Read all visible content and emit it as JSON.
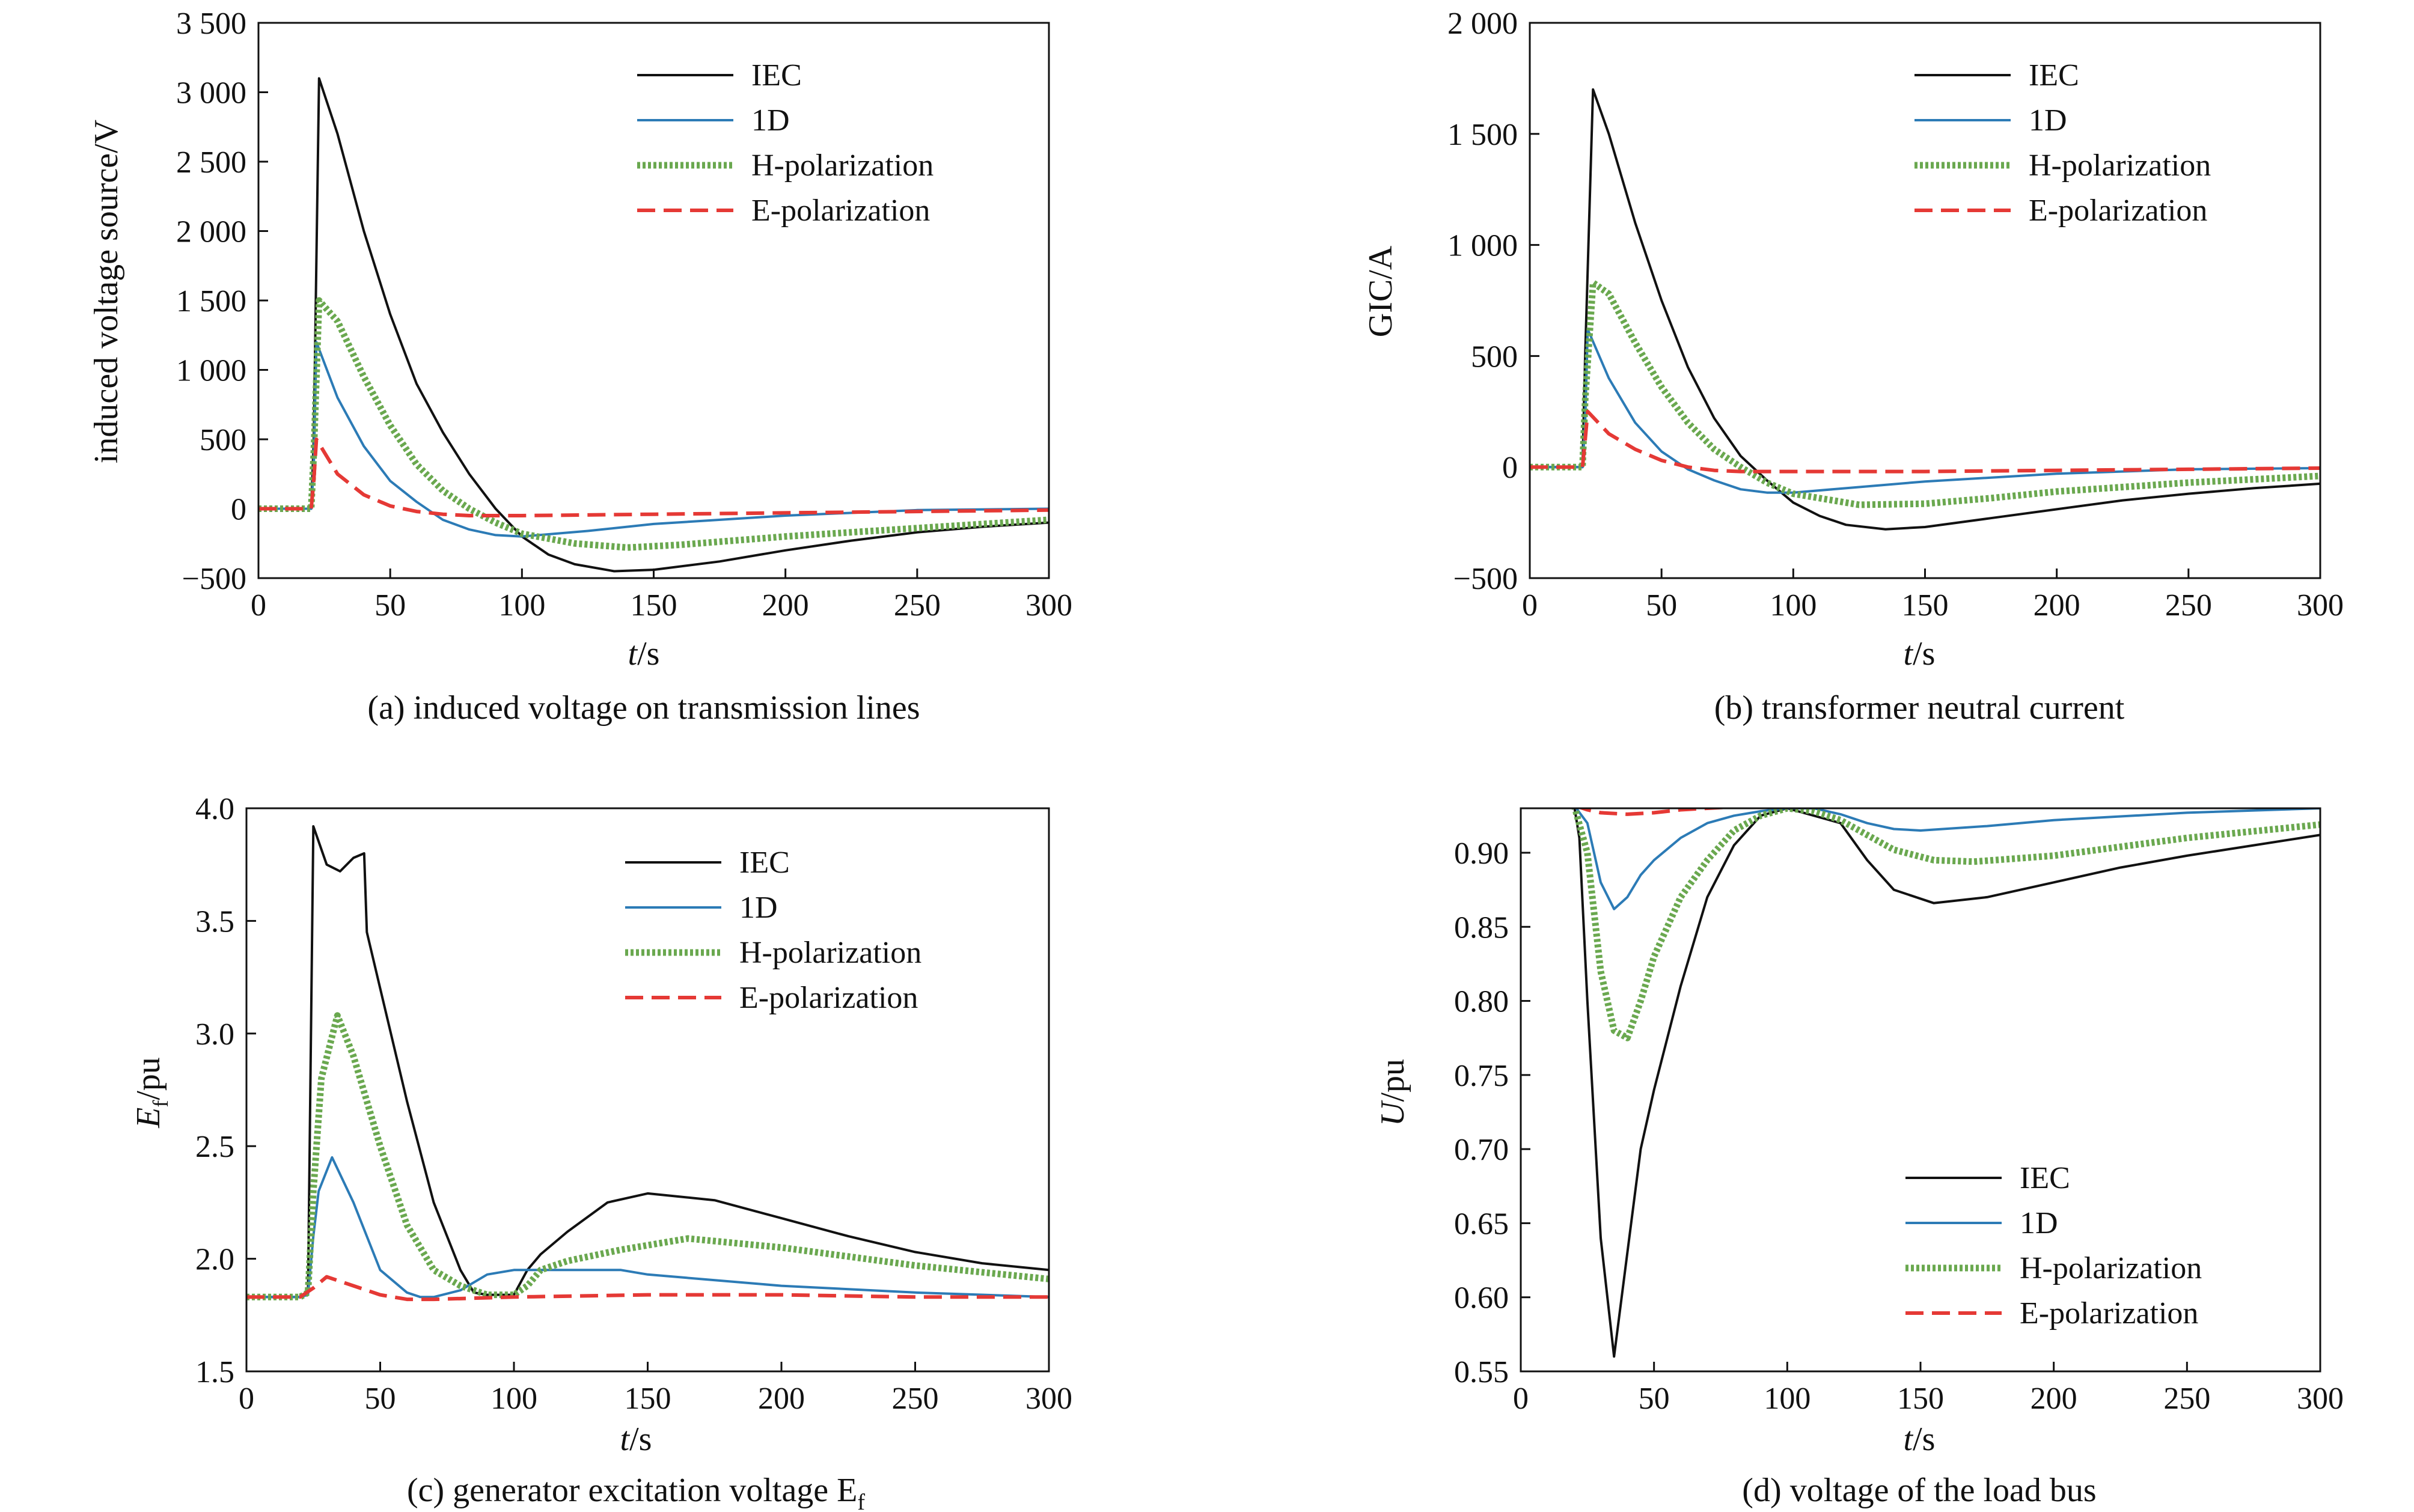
{
  "colors": {
    "IEC": "#111111",
    "1D": "#2c7bb6",
    "H-polarization": "#6aa84f",
    "E-polarization": "#e53935"
  },
  "panels": [
    {
      "id": "a",
      "caption": "(a) induced voltage on transmission lines",
      "xlabel": "t/s",
      "ylabel": "induced voltage source/V",
      "xticks": [
        "0",
        "50",
        "100",
        "150",
        "200",
        "250",
        "300"
      ],
      "yticks": [
        "−500",
        "0",
        "500",
        "1 000",
        "1 500",
        "2 000",
        "2 500",
        "3 000",
        "3 500"
      ],
      "legend": [
        "IEC",
        "1D",
        "H-polarization",
        "E-polarization"
      ],
      "legend_position": "top-right"
    },
    {
      "id": "b",
      "caption": "(b) transformer neutral current",
      "xlabel": "t/s",
      "ylabel": "GIC/A",
      "xticks": [
        "0",
        "50",
        "100",
        "150",
        "200",
        "250",
        "300"
      ],
      "yticks": [
        "−500",
        "0",
        "500",
        "1 000",
        "1 500",
        "2 000"
      ],
      "legend": [
        "IEC",
        "1D",
        "H-polarization",
        "E-polarization"
      ],
      "legend_position": "top-right"
    },
    {
      "id": "c",
      "caption": "(c) generator excitation voltage E",
      "caption_sub": "f",
      "xlabel": "t/s",
      "ylabel": "E",
      "ylabel_sub": "f",
      "ylabel_rest": "/pu",
      "xticks": [
        "0",
        "50",
        "100",
        "150",
        "200",
        "250",
        "300"
      ],
      "yticks": [
        "1.5",
        "2.0",
        "2.5",
        "3.0",
        "3.5",
        "4.0"
      ],
      "legend": [
        "IEC",
        "1D",
        "H-polarization",
        "E-polarization"
      ],
      "legend_position": "top-right"
    },
    {
      "id": "d",
      "caption": "(d) voltage of the load bus",
      "xlabel": "t/s",
      "ylabel": "U/pu",
      "xticks": [
        "0",
        "50",
        "100",
        "150",
        "200",
        "250",
        "300"
      ],
      "yticks": [
        "0.55",
        "0.60",
        "0.65",
        "0.70",
        "0.75",
        "0.80",
        "0.85",
        "0.90"
      ],
      "legend": [
        "IEC",
        "1D",
        "H-polarization",
        "E-polarization"
      ],
      "legend_position": "bottom-right"
    }
  ],
  "chart_data": [
    {
      "type": "line",
      "title": "(a) induced voltage on transmission lines",
      "xlabel": "t/s",
      "ylabel": "induced voltage source/V",
      "xlim": [
        0,
        300
      ],
      "ylim": [
        -500,
        3500
      ],
      "legend": "top-right",
      "series": [
        {
          "name": "IEC",
          "x": [
            0,
            20,
            21,
            23,
            30,
            40,
            50,
            60,
            70,
            80,
            90,
            100,
            110,
            120,
            135,
            150,
            175,
            200,
            225,
            250,
            275,
            300
          ],
          "y": [
            0,
            0,
            500,
            3100,
            2700,
            2000,
            1400,
            900,
            550,
            250,
            0,
            -200,
            -330,
            -400,
            -450,
            -440,
            -380,
            -300,
            -230,
            -170,
            -130,
            -100
          ]
        },
        {
          "name": "1D",
          "x": [
            0,
            20,
            21,
            22,
            30,
            40,
            50,
            60,
            70,
            80,
            90,
            100,
            125,
            150,
            200,
            250,
            300
          ],
          "y": [
            0,
            0,
            300,
            1200,
            800,
            450,
            200,
            50,
            -80,
            -150,
            -190,
            -200,
            -160,
            -110,
            -50,
            -10,
            0
          ]
        },
        {
          "name": "H-polarization",
          "x": [
            0,
            20,
            21,
            23,
            30,
            40,
            50,
            60,
            70,
            80,
            90,
            100,
            120,
            140,
            160,
            200,
            250,
            300
          ],
          "y": [
            0,
            0,
            400,
            1500,
            1350,
            950,
            600,
            320,
            130,
            0,
            -100,
            -180,
            -250,
            -280,
            -260,
            -200,
            -140,
            -80
          ]
        },
        {
          "name": "E-polarization",
          "x": [
            0,
            20,
            21,
            22,
            30,
            40,
            50,
            60,
            70,
            80,
            100,
            150,
            200,
            250,
            300
          ],
          "y": [
            0,
            0,
            200,
            500,
            250,
            100,
            20,
            -20,
            -40,
            -50,
            -50,
            -40,
            -30,
            -20,
            -10
          ]
        }
      ]
    },
    {
      "type": "line",
      "title": "(b) transformer neutral current",
      "xlabel": "t/s",
      "ylabel": "GIC/A",
      "xlim": [
        0,
        300
      ],
      "ylim": [
        -500,
        2000
      ],
      "legend": "top-right",
      "series": [
        {
          "name": "IEC",
          "x": [
            0,
            20,
            21,
            24,
            30,
            40,
            50,
            60,
            70,
            80,
            90,
            100,
            110,
            120,
            135,
            150,
            175,
            200,
            225,
            250,
            275,
            300
          ],
          "y": [
            0,
            0,
            500,
            1700,
            1500,
            1100,
            750,
            450,
            220,
            50,
            -60,
            -160,
            -220,
            -260,
            -280,
            -270,
            -230,
            -190,
            -150,
            -120,
            -95,
            -75
          ]
        },
        {
          "name": "1D",
          "x": [
            0,
            20,
            21,
            22,
            30,
            40,
            50,
            60,
            70,
            80,
            90,
            100,
            125,
            150,
            200,
            250,
            300
          ],
          "y": [
            0,
            0,
            200,
            620,
            400,
            200,
            70,
            -10,
            -60,
            -100,
            -115,
            -115,
            -90,
            -65,
            -30,
            -10,
            -5
          ]
        },
        {
          "name": "H-polarization",
          "x": [
            0,
            20,
            21,
            24,
            30,
            40,
            50,
            60,
            70,
            80,
            90,
            100,
            125,
            150,
            175,
            200,
            250,
            300
          ],
          "y": [
            0,
            0,
            300,
            830,
            780,
            560,
            360,
            200,
            80,
            0,
            -70,
            -120,
            -170,
            -165,
            -140,
            -110,
            -70,
            -40
          ]
        },
        {
          "name": "E-polarization",
          "x": [
            0,
            20,
            21,
            22,
            30,
            40,
            50,
            60,
            70,
            80,
            100,
            150,
            200,
            250,
            300
          ],
          "y": [
            0,
            0,
            120,
            250,
            150,
            80,
            30,
            0,
            -15,
            -20,
            -20,
            -20,
            -15,
            -10,
            -5
          ]
        }
      ]
    },
    {
      "type": "line",
      "title": "(c) generator excitation voltage Ef",
      "xlabel": "t/s",
      "ylabel": "Ef/pu",
      "xlim": [
        0,
        300
      ],
      "ylim": [
        1.5,
        4.0
      ],
      "legend": "top-right",
      "series": [
        {
          "name": "IEC",
          "x": [
            0,
            20,
            23,
            25,
            30,
            35,
            40,
            44,
            45,
            50,
            60,
            70,
            80,
            85,
            90,
            100,
            105,
            110,
            120,
            135,
            150,
            175,
            200,
            225,
            250,
            275,
            300
          ],
          "y": [
            1.83,
            1.83,
            1.85,
            3.92,
            3.75,
            3.72,
            3.78,
            3.8,
            3.45,
            3.2,
            2.7,
            2.25,
            1.95,
            1.85,
            1.84,
            1.84,
            1.95,
            2.02,
            2.12,
            2.25,
            2.29,
            2.26,
            2.18,
            2.1,
            2.03,
            1.98,
            1.95
          ]
        },
        {
          "name": "1D",
          "x": [
            0,
            20,
            23,
            25,
            27,
            32,
            40,
            50,
            60,
            65,
            70,
            80,
            90,
            100,
            120,
            140,
            150,
            200,
            250,
            300
          ],
          "y": [
            1.83,
            1.83,
            1.84,
            2.1,
            2.3,
            2.45,
            2.25,
            1.95,
            1.85,
            1.83,
            1.83,
            1.86,
            1.93,
            1.95,
            1.95,
            1.95,
            1.93,
            1.88,
            1.85,
            1.83
          ]
        },
        {
          "name": "H-polarization",
          "x": [
            0,
            20,
            23,
            25,
            28,
            34,
            40,
            50,
            60,
            70,
            80,
            85,
            90,
            100,
            105,
            110,
            120,
            140,
            165,
            200,
            250,
            300
          ],
          "y": [
            1.83,
            1.83,
            1.85,
            2.3,
            2.8,
            3.08,
            2.9,
            2.5,
            2.15,
            1.95,
            1.88,
            1.86,
            1.84,
            1.84,
            1.88,
            1.95,
            1.99,
            2.04,
            2.09,
            2.05,
            1.97,
            1.91
          ]
        },
        {
          "name": "E-polarization",
          "x": [
            0,
            20,
            25,
            30,
            40,
            50,
            60,
            70,
            100,
            150,
            200,
            250,
            300
          ],
          "y": [
            1.83,
            1.83,
            1.87,
            1.92,
            1.88,
            1.84,
            1.82,
            1.82,
            1.83,
            1.84,
            1.84,
            1.83,
            1.83
          ]
        }
      ]
    },
    {
      "type": "line",
      "title": "(d) voltage of the load bus",
      "xlabel": "t/s",
      "ylabel": "U/pu",
      "xlim": [
        0,
        300
      ],
      "ylim": [
        0.55,
        0.93
      ],
      "legend": "bottom-right",
      "series": [
        {
          "name": "IEC",
          "x": [
            0,
            20,
            22,
            25,
            30,
            35,
            40,
            45,
            50,
            60,
            70,
            80,
            90,
            100,
            110,
            120,
            130,
            140,
            155,
            175,
            200,
            225,
            250,
            275,
            300
          ],
          "y": [
            0.932,
            0.932,
            0.91,
            0.8,
            0.64,
            0.56,
            0.63,
            0.7,
            0.74,
            0.81,
            0.87,
            0.905,
            0.925,
            0.93,
            0.925,
            0.92,
            0.895,
            0.875,
            0.866,
            0.87,
            0.88,
            0.89,
            0.898,
            0.905,
            0.912
          ]
        },
        {
          "name": "1D",
          "x": [
            0,
            20,
            25,
            30,
            35,
            40,
            45,
            50,
            60,
            70,
            80,
            90,
            100,
            110,
            120,
            130,
            140,
            150,
            175,
            200,
            250,
            300
          ],
          "y": [
            0.932,
            0.932,
            0.92,
            0.88,
            0.862,
            0.87,
            0.885,
            0.895,
            0.91,
            0.92,
            0.925,
            0.928,
            0.93,
            0.93,
            0.926,
            0.92,
            0.916,
            0.915,
            0.918,
            0.922,
            0.927,
            0.93
          ]
        },
        {
          "name": "H-polarization",
          "x": [
            0,
            20,
            25,
            30,
            35,
            40,
            45,
            50,
            60,
            70,
            80,
            90,
            100,
            110,
            120,
            130,
            140,
            155,
            170,
            200,
            250,
            300
          ],
          "y": [
            0.932,
            0.932,
            0.9,
            0.82,
            0.78,
            0.775,
            0.8,
            0.83,
            0.87,
            0.895,
            0.915,
            0.925,
            0.93,
            0.928,
            0.922,
            0.912,
            0.902,
            0.895,
            0.894,
            0.898,
            0.91,
            0.919
          ]
        },
        {
          "name": "E-polarization",
          "x": [
            0,
            20,
            25,
            30,
            40,
            50,
            60,
            70,
            80,
            100,
            150,
            200,
            250,
            300
          ],
          "y": [
            0.932,
            0.932,
            0.929,
            0.927,
            0.926,
            0.927,
            0.929,
            0.93,
            0.931,
            0.931,
            0.931,
            0.931,
            0.931,
            0.931
          ]
        }
      ]
    }
  ]
}
